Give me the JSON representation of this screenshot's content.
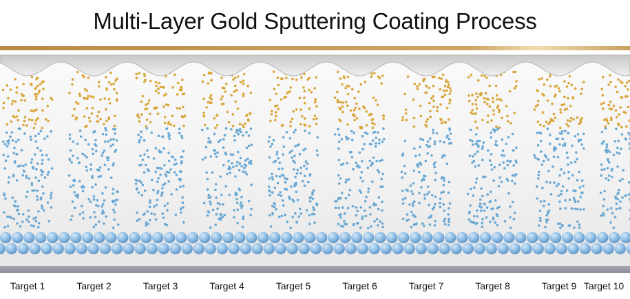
{
  "title": "Multi-Layer Gold Sputtering Coating Process",
  "targets": [
    {
      "label": "Target 1"
    },
    {
      "label": "Target 2"
    },
    {
      "label": "Target 3"
    },
    {
      "label": "Target 4"
    },
    {
      "label": "Target 5"
    },
    {
      "label": "Target 6"
    },
    {
      "label": "Target 7"
    },
    {
      "label": "Target 8"
    },
    {
      "label": "Target 9"
    },
    {
      "label": "Target 10"
    }
  ],
  "colors": {
    "gold": "#d9a63a",
    "gold_bar": "#c9a46a",
    "blue_particle": "#6aa8d4",
    "substrate_sphere": "#8fbde6",
    "base_plate": "#9a9aa8",
    "background_top": "#f4f4f4",
    "background_bottom": "#e9e9e9"
  }
}
